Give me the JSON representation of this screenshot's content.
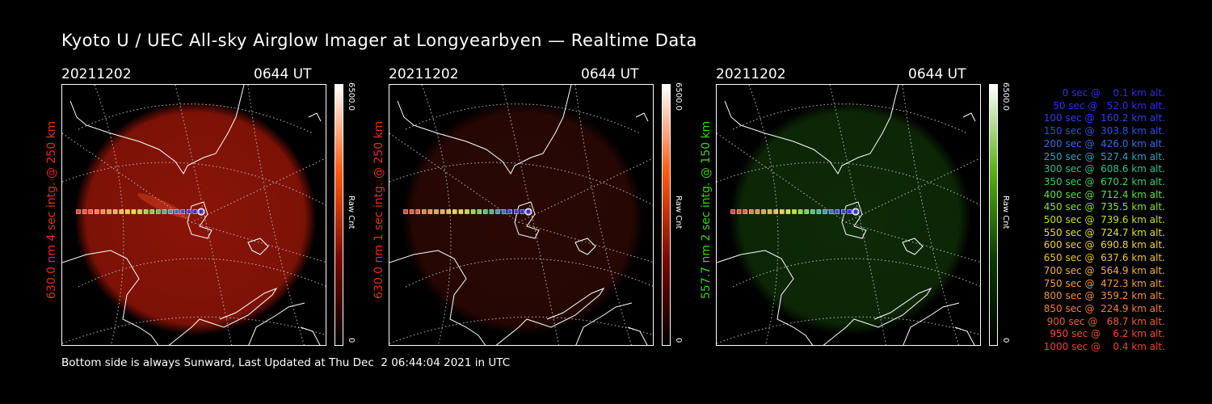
{
  "title": "Kyoto U / UEC All-sky Airglow Imager at Longyearbyen — Realtime Data",
  "panels": [
    {
      "date": "20211202",
      "time": "0644 UT",
      "ylabel": "630.0 nm 4 sec intg. @ 250 km",
      "ylabel_color": "#e03020",
      "cbar_max": "6500.0",
      "cbar_min": "0",
      "cbar_unit": "Raw Cnt",
      "glow_color": "#8a1408",
      "cbar_gradient": [
        "#000000",
        "#7a0a00",
        "#ff5a10",
        "#ffffff"
      ]
    },
    {
      "date": "20211202",
      "time": "0644 UT",
      "ylabel": "630.0 nm 1 sec intg. @ 250 km",
      "ylabel_color": "#e03020",
      "cbar_max": "6500.0",
      "cbar_min": "0",
      "cbar_unit": "Raw Cnt",
      "glow_color": "#2a0804",
      "cbar_gradient": [
        "#000000",
        "#7a0a00",
        "#ff5a10",
        "#ffffff"
      ]
    },
    {
      "date": "20211202",
      "time": "0644 UT",
      "ylabel": "557.7 nm 2 sec intg. @ 150 km",
      "ylabel_color": "#40d020",
      "cbar_max": "6500.0",
      "cbar_min": "0",
      "cbar_unit": "Raw Cnt",
      "glow_color": "#0e2a06",
      "cbar_gradient": [
        "#000000",
        "#0a3a00",
        "#58b010",
        "#ffffff"
      ]
    }
  ],
  "legend": [
    {
      "text": "0 sec @    0.1 km alt.",
      "color": "#3030e0"
    },
    {
      "text": "50 sec @   52.0 km alt.",
      "color": "#3030e8"
    },
    {
      "text": "100 sec @  160.2 km alt.",
      "color": "#3040f0"
    },
    {
      "text": "150 sec @  303.8 km alt.",
      "color": "#3050e8"
    },
    {
      "text": "200 sec @  426.0 km alt.",
      "color": "#3070e0"
    },
    {
      "text": "250 sec @  527.4 km alt.",
      "color": "#30a0c0"
    },
    {
      "text": "300 sec @  608.6 km alt.",
      "color": "#30c090"
    },
    {
      "text": "350 sec @  670.2 km alt.",
      "color": "#40d060"
    },
    {
      "text": "400 sec @  712.4 km alt.",
      "color": "#60e040"
    },
    {
      "text": "450 sec @  735.5 km alt.",
      "color": "#90e030"
    },
    {
      "text": "500 sec @  739.6 km alt.",
      "color": "#c0e030"
    },
    {
      "text": "550 sec @  724.7 km alt.",
      "color": "#e0e030"
    },
    {
      "text": "600 sec @  690.8 km alt.",
      "color": "#f0d040"
    },
    {
      "text": "650 sec @  637.6 km alt.",
      "color": "#f0c040"
    },
    {
      "text": "700 sec @  564.9 km alt.",
      "color": "#f0b040"
    },
    {
      "text": "750 sec @  472.3 km alt.",
      "color": "#f0a040"
    },
    {
      "text": "800 sec @  359.2 km alt.",
      "color": "#f09040"
    },
    {
      "text": "850 sec @  224.9 km alt.",
      "color": "#f08040"
    },
    {
      "text": "900 sec @   68.7 km alt.",
      "color": "#f06030"
    },
    {
      "text": "950 sec @    6.2 km alt.",
      "color": "#f05030"
    },
    {
      "text": "1000 sec @    0.4 km alt.",
      "color": "#f04030"
    }
  ],
  "footer": "Bottom side is always Sunward, Last Updated at Thu Dec  2 06:44:04 2021 in UTC"
}
